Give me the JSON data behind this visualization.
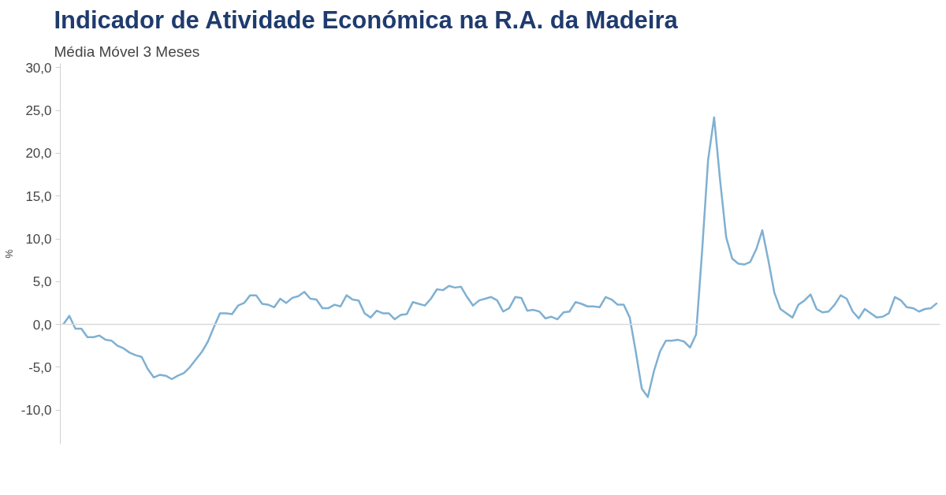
{
  "chart_data": {
    "type": "line",
    "title": "Indicador de Atividade Económica na R.A. da Madeira",
    "subtitle": "Média Móvel 3 Meses",
    "ylabel": "%",
    "categories": [
      null,
      null,
      null,
      null,
      null,
      null,
      null,
      null,
      null,
      null,
      null,
      null,
      null,
      null,
      null,
      null,
      null,
      null,
      null,
      null,
      null,
      null,
      null,
      null,
      null,
      null,
      null,
      null,
      null,
      null,
      null,
      null,
      null,
      null,
      null,
      null,
      null,
      null,
      null,
      null,
      null,
      null,
      null,
      null,
      null,
      null,
      null,
      null,
      null,
      null,
      null,
      null,
      null,
      null,
      null,
      null,
      null,
      null,
      null,
      null,
      null,
      null,
      null,
      null,
      null,
      null,
      null,
      null,
      null,
      null,
      null,
      null,
      null,
      null,
      null,
      null,
      null,
      null,
      null,
      null,
      null,
      null,
      null,
      null,
      null,
      null,
      null,
      null,
      null,
      null,
      null,
      null,
      null,
      null,
      null,
      null,
      null,
      null,
      null,
      null,
      null,
      null,
      null,
      null,
      null,
      null,
      null,
      null,
      null,
      null,
      null,
      null,
      null,
      null,
      null,
      null,
      null,
      null,
      null,
      null,
      null,
      null,
      null,
      null,
      null,
      null,
      null,
      null,
      null,
      null,
      null,
      null,
      null,
      null,
      null,
      null,
      null,
      null,
      null,
      null,
      null,
      null,
      null,
      null,
      null,
      null
    ],
    "series": [
      {
        "color": "#7fb0d2",
        "values": [
          0,
          1.0,
          -0.5,
          -0.5,
          -1.5,
          -1.5,
          -1.3,
          -1.8,
          -1.9,
          -2.5,
          -2.8,
          -3.3,
          -3.6,
          -3.8,
          -5.2,
          -6.2,
          -5.9,
          -6.0,
          -6.4,
          -6.0,
          -5.7,
          -5.0,
          -4.1,
          -3.2,
          -2.0,
          -0.3,
          1.3,
          1.3,
          1.2,
          2.2,
          2.5,
          3.4,
          3.4,
          2.4,
          2.3,
          2.0,
          3.0,
          2.5,
          3.1,
          3.3,
          3.8,
          3.0,
          2.9,
          1.9,
          1.9,
          2.3,
          2.1,
          3.4,
          2.9,
          2.8,
          1.3,
          0.8,
          1.6,
          1.3,
          1.3,
          0.6,
          1.1,
          1.2,
          2.6,
          2.4,
          2.2,
          3.0,
          4.1,
          4.0,
          4.5,
          4.3,
          4.4,
          3.2,
          2.2,
          2.8,
          3.0,
          3.2,
          2.8,
          1.5,
          1.9,
          3.2,
          3.1,
          1.6,
          1.7,
          1.5,
          0.7,
          0.9,
          0.6,
          1.4,
          1.5,
          2.6,
          2.4,
          2.1,
          2.1,
          2.0,
          3.2,
          2.9,
          2.3,
          2.3,
          0.8,
          -3.2,
          -7.5,
          -8.5,
          -5.5,
          -3.2,
          -1.9,
          -1.9,
          -1.8,
          -2.0,
          -2.7,
          -1.2,
          8.5,
          19.2,
          24.2,
          16.8,
          10.2,
          7.7,
          7.1,
          7.0,
          7.3,
          8.8,
          11.0,
          7.5,
          3.7,
          1.8,
          1.3,
          0.8,
          2.3,
          2.8,
          3.5,
          1.8,
          1.4,
          1.5,
          2.3,
          3.4,
          3.0,
          1.5,
          0.7,
          1.8,
          1.3,
          0.8,
          0.9,
          1.3,
          3.2,
          2.8,
          2.0,
          1.9,
          1.5,
          1.8,
          1.9,
          2.5
        ]
      }
    ],
    "ylim": [
      -14,
      30.5
    ],
    "yticks": [
      {
        "value": -10,
        "label": "-10,0"
      },
      {
        "value": -5,
        "label": "-5,0"
      },
      {
        "value": 0,
        "label": "0,0"
      },
      {
        "value": 5,
        "label": "5,0"
      },
      {
        "value": 10,
        "label": "10,0"
      },
      {
        "value": 15,
        "label": "15,0"
      },
      {
        "value": 20,
        "label": "20,0"
      },
      {
        "value": 25,
        "label": "25,0"
      },
      {
        "value": 30,
        "label": "30,0"
      }
    ],
    "ref_lines": [
      {
        "axis": "y",
        "value": 0,
        "color": "#d9d9d9"
      }
    ],
    "line_style": "solid",
    "tick_labels": "y"
  }
}
